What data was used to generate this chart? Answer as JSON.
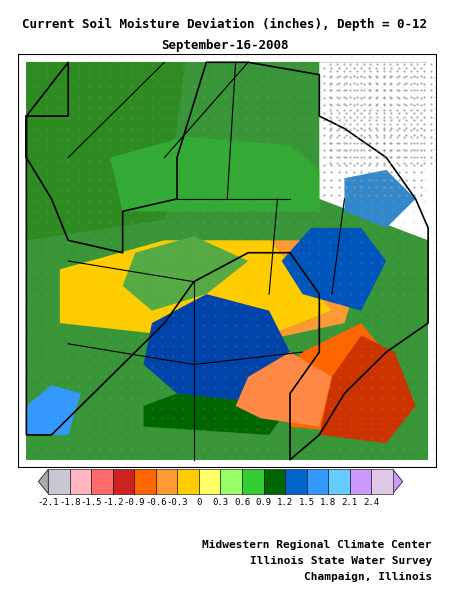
{
  "title_line1": "Current Soil Moisture Deviation (inches), Depth = 0-12",
  "title_line2": "September-16-2008",
  "colorbar_values": [
    -2.1,
    -1.8,
    -1.5,
    -1.2,
    -0.9,
    -0.6,
    -0.3,
    0,
    0.3,
    0.6,
    0.9,
    1.2,
    1.5,
    1.8,
    2.1,
    2.4
  ],
  "colorbar_labels": [
    "-2.1",
    "-1.8",
    "-1.5",
    "-1.2",
    "-0.9",
    "-0.6",
    "-0.3",
    "0",
    "0.3",
    "0.6",
    "0.9",
    "1.2",
    "1.5",
    "1.8",
    "2.1",
    "2.4"
  ],
  "colorbar_colors": [
    "#C8C8D4",
    "#FFB6C1",
    "#FF6B6B",
    "#CC2222",
    "#FF6600",
    "#FF9933",
    "#FFCC00",
    "#FFFF66",
    "#99FF66",
    "#33CC33",
    "#006600",
    "#0066CC",
    "#3399FF",
    "#66CCFF",
    "#CC99FF",
    "#E0C8E8"
  ],
  "credit_line1": "Midwestern Regional Climate Center",
  "credit_line2": "Illinois State Water Survey",
  "credit_line3": "Champaign, Illinois",
  "bg_color": "#FFFFFF",
  "map_bg": "#FFFFFF",
  "map_border": "#000000",
  "figsize": [
    4.5,
    6.0
  ],
  "dpi": 100
}
